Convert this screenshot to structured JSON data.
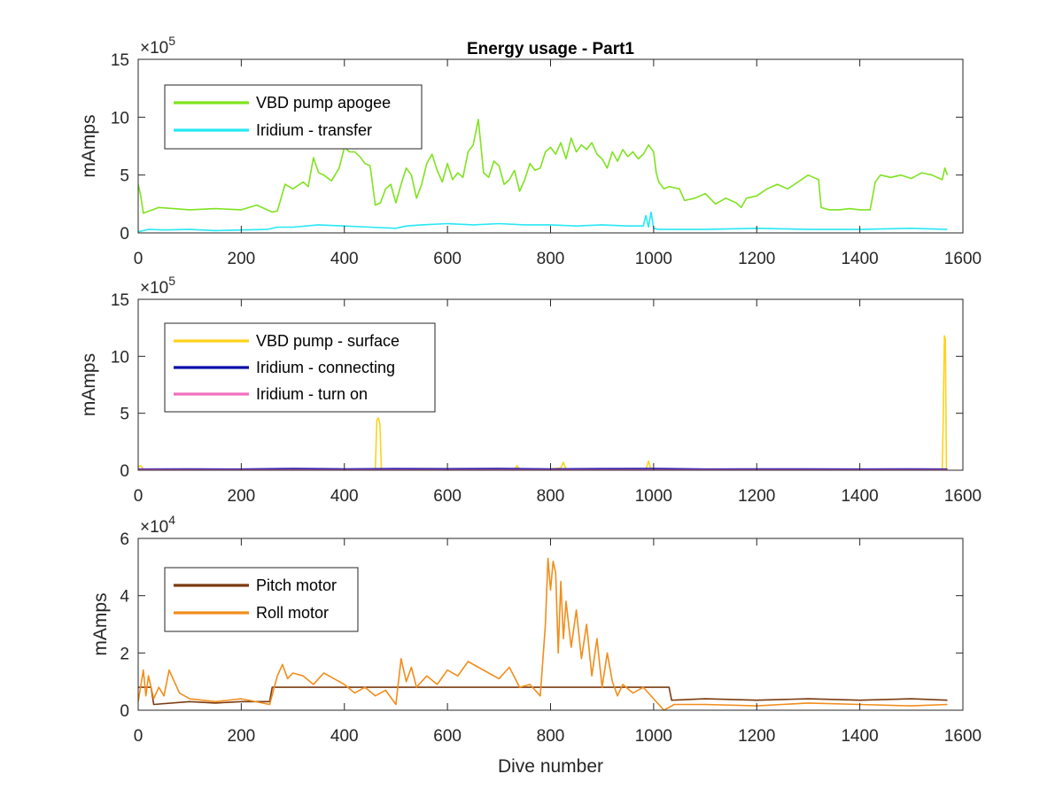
{
  "chart_data": [
    {
      "type": "line",
      "title": "Energy usage - Part1",
      "xlabel": "",
      "ylabel": "mAmps",
      "xlim": [
        0,
        1600
      ],
      "ylim": [
        0,
        1500000
      ],
      "x_ticks": [
        0,
        200,
        400,
        600,
        800,
        1000,
        1200,
        1400,
        1600
      ],
      "x_tick_labels": [
        "0",
        "200",
        "400",
        "600",
        "800",
        "1000",
        "1200",
        "1400",
        "1600"
      ],
      "y_ticks": [
        0,
        500000,
        1000000,
        1500000
      ],
      "y_tick_labels": [
        "0",
        "5",
        "10",
        "15"
      ],
      "y_exponent": {
        "base": "×10",
        "power": "5"
      },
      "legend_position": "top-left",
      "series": [
        {
          "name": "VBD pump apogee",
          "color": "#7fe31f",
          "x": [
            0,
            5,
            10,
            40,
            100,
            150,
            200,
            230,
            260,
            270,
            285,
            300,
            320,
            330,
            340,
            350,
            360,
            375,
            390,
            400,
            410,
            420,
            430,
            440,
            450,
            460,
            470,
            480,
            490,
            500,
            510,
            520,
            530,
            540,
            550,
            560,
            570,
            580,
            590,
            600,
            610,
            620,
            630,
            640,
            650,
            660,
            670,
            680,
            690,
            700,
            710,
            720,
            730,
            740,
            750,
            760,
            770,
            780,
            790,
            800,
            810,
            820,
            830,
            840,
            850,
            860,
            870,
            880,
            890,
            900,
            910,
            920,
            930,
            940,
            950,
            960,
            970,
            980,
            990,
            1000,
            1005,
            1010,
            1020,
            1030,
            1040,
            1050,
            1060,
            1080,
            1100,
            1120,
            1140,
            1160,
            1170,
            1180,
            1200,
            1220,
            1240,
            1260,
            1280,
            1300,
            1310,
            1320,
            1325,
            1340,
            1360,
            1380,
            1400,
            1420,
            1430,
            1440,
            1460,
            1480,
            1500,
            1520,
            1540,
            1560,
            1565,
            1570
          ],
          "y": [
            420000,
            320000,
            170000,
            220000,
            200000,
            210000,
            200000,
            240000,
            180000,
            190000,
            420000,
            380000,
            440000,
            400000,
            650000,
            520000,
            500000,
            450000,
            560000,
            740000,
            700000,
            700000,
            660000,
            600000,
            580000,
            240000,
            260000,
            380000,
            420000,
            260000,
            420000,
            560000,
            500000,
            300000,
            420000,
            600000,
            680000,
            540000,
            440000,
            600000,
            460000,
            520000,
            480000,
            700000,
            760000,
            980000,
            520000,
            480000,
            620000,
            580000,
            420000,
            460000,
            540000,
            360000,
            460000,
            600000,
            540000,
            560000,
            700000,
            740000,
            680000,
            780000,
            640000,
            820000,
            700000,
            760000,
            720000,
            780000,
            680000,
            640000,
            560000,
            700000,
            620000,
            720000,
            660000,
            700000,
            640000,
            680000,
            760000,
            700000,
            520000,
            440000,
            380000,
            400000,
            390000,
            380000,
            280000,
            300000,
            340000,
            250000,
            300000,
            260000,
            220000,
            300000,
            320000,
            380000,
            420000,
            380000,
            440000,
            500000,
            480000,
            460000,
            220000,
            200000,
            200000,
            210000,
            200000,
            200000,
            440000,
            500000,
            480000,
            500000,
            470000,
            520000,
            500000,
            460000,
            560000,
            500000
          ]
        },
        {
          "name": "Iridium - transfer",
          "color": "#27e8f5",
          "x": [
            0,
            20,
            50,
            100,
            150,
            200,
            250,
            270,
            300,
            350,
            400,
            450,
            500,
            520,
            550,
            600,
            650,
            700,
            750,
            800,
            850,
            900,
            950,
            980,
            985,
            990,
            995,
            1000,
            1010,
            1030,
            1100,
            1200,
            1300,
            1400,
            1500,
            1570
          ],
          "y": [
            10000,
            30000,
            25000,
            30000,
            20000,
            25000,
            30000,
            50000,
            50000,
            70000,
            60000,
            50000,
            40000,
            60000,
            70000,
            80000,
            70000,
            80000,
            70000,
            70000,
            60000,
            70000,
            60000,
            60000,
            150000,
            50000,
            180000,
            40000,
            30000,
            30000,
            30000,
            40000,
            30000,
            30000,
            40000,
            30000
          ]
        }
      ]
    },
    {
      "type": "line",
      "title": "",
      "xlabel": "",
      "ylabel": "mAmps",
      "xlim": [
        0,
        1600
      ],
      "ylim": [
        0,
        1500000
      ],
      "x_ticks": [
        0,
        200,
        400,
        600,
        800,
        1000,
        1200,
        1400,
        1600
      ],
      "x_tick_labels": [
        "0",
        "200",
        "400",
        "600",
        "800",
        "1000",
        "1200",
        "1400",
        "1600"
      ],
      "y_ticks": [
        0,
        500000,
        1000000,
        1500000
      ],
      "y_tick_labels": [
        "0",
        "5",
        "10",
        "15"
      ],
      "y_exponent": {
        "base": "×10",
        "power": "5"
      },
      "legend_position": "top-left",
      "series": [
        {
          "name": "VBD pump - surface",
          "color": "#ffd21e",
          "x": [
            0,
            5,
            10,
            200,
            400,
            460,
            463,
            466,
            469,
            472,
            600,
            730,
            735,
            740,
            800,
            820,
            825,
            830,
            900,
            985,
            990,
            995,
            1200,
            1400,
            1560,
            1562,
            1564,
            1566,
            1568,
            1570
          ],
          "y": [
            30000,
            40000,
            10000,
            5000,
            8000,
            5000,
            440000,
            460000,
            400000,
            5000,
            10000,
            5000,
            40000,
            5000,
            10000,
            20000,
            70000,
            5000,
            10000,
            5000,
            80000,
            5000,
            5000,
            5000,
            5000,
            500000,
            1180000,
            1150000,
            20000,
            5000
          ]
        },
        {
          "name": "Iridium - connecting",
          "color": "#0b0fa8",
          "x": [
            0,
            100,
            200,
            300,
            400,
            500,
            600,
            700,
            800,
            900,
            1000,
            1100,
            1200,
            1300,
            1400,
            1500,
            1570
          ],
          "y": [
            10000,
            12000,
            10000,
            15000,
            12000,
            14000,
            13000,
            15000,
            12000,
            14000,
            15000,
            10000,
            12000,
            11000,
            10000,
            12000,
            10000
          ]
        },
        {
          "name": "Iridium - turn on",
          "color": "#f06fbe",
          "x": [
            0,
            100,
            200,
            300,
            400,
            500,
            600,
            700,
            800,
            900,
            1000,
            1100,
            1200,
            1300,
            1400,
            1500,
            1570
          ],
          "y": [
            5000,
            3000,
            4000,
            3000,
            4000,
            3000,
            4000,
            3000,
            4000,
            3000,
            3000,
            4000,
            3000,
            4000,
            3000,
            4000,
            3000
          ]
        }
      ]
    },
    {
      "type": "line",
      "title": "",
      "xlabel": "Dive number",
      "ylabel": "mAmps",
      "xlim": [
        0,
        1600
      ],
      "ylim": [
        0,
        60000
      ],
      "x_ticks": [
        0,
        200,
        400,
        600,
        800,
        1000,
        1200,
        1400,
        1600
      ],
      "x_tick_labels": [
        "0",
        "200",
        "400",
        "600",
        "800",
        "1000",
        "1200",
        "1400",
        "1600"
      ],
      "y_ticks": [
        0,
        20000,
        40000,
        60000
      ],
      "y_tick_labels": [
        "0",
        "2",
        "4",
        "6"
      ],
      "y_exponent": {
        "base": "×10",
        "power": "4"
      },
      "legend_position": "top-left",
      "series": [
        {
          "name": "Pitch motor",
          "color": "#7a3b10",
          "x": [
            0,
            25,
            30,
            100,
            150,
            200,
            255,
            260,
            400,
            500,
            600,
            700,
            800,
            900,
            1000,
            1030,
            1035,
            1100,
            1200,
            1300,
            1400,
            1500,
            1570
          ],
          "y": [
            8000,
            8000,
            2000,
            3000,
            2500,
            3000,
            3000,
            8000,
            8000,
            8000,
            8000,
            8000,
            8000,
            8000,
            8000,
            8000,
            3500,
            4000,
            3500,
            4000,
            3500,
            4000,
            3500
          ]
        },
        {
          "name": "Roll motor",
          "color": "#f28d1b",
          "x": [
            0,
            10,
            15,
            20,
            30,
            40,
            50,
            60,
            80,
            100,
            150,
            200,
            255,
            270,
            280,
            290,
            300,
            320,
            340,
            360,
            380,
            400,
            420,
            440,
            460,
            480,
            500,
            510,
            520,
            530,
            540,
            560,
            580,
            600,
            620,
            640,
            660,
            680,
            700,
            720,
            740,
            760,
            780,
            790,
            795,
            800,
            805,
            810,
            815,
            820,
            825,
            830,
            840,
            850,
            860,
            870,
            880,
            890,
            900,
            910,
            920,
            930,
            940,
            960,
            980,
            1000,
            1010,
            1020,
            1040,
            1100,
            1200,
            1300,
            1400,
            1500,
            1570
          ],
          "y": [
            3000,
            14000,
            5000,
            12000,
            4000,
            8000,
            5000,
            14000,
            6000,
            4000,
            3000,
            4000,
            2000,
            12000,
            16000,
            11000,
            13000,
            12000,
            9000,
            13000,
            11000,
            9000,
            6000,
            8000,
            5000,
            7000,
            2000,
            18000,
            10000,
            15000,
            8000,
            12000,
            9000,
            14000,
            12000,
            17000,
            15000,
            13000,
            11000,
            15000,
            8000,
            9000,
            5000,
            30000,
            53000,
            42000,
            52000,
            48000,
            20000,
            45000,
            25000,
            38000,
            22000,
            35000,
            18000,
            30000,
            12000,
            25000,
            8000,
            20000,
            10000,
            5000,
            9000,
            6000,
            8000,
            4000,
            2000,
            0,
            2000,
            2000,
            1500,
            2500,
            2000,
            1500,
            2000
          ]
        }
      ]
    }
  ]
}
